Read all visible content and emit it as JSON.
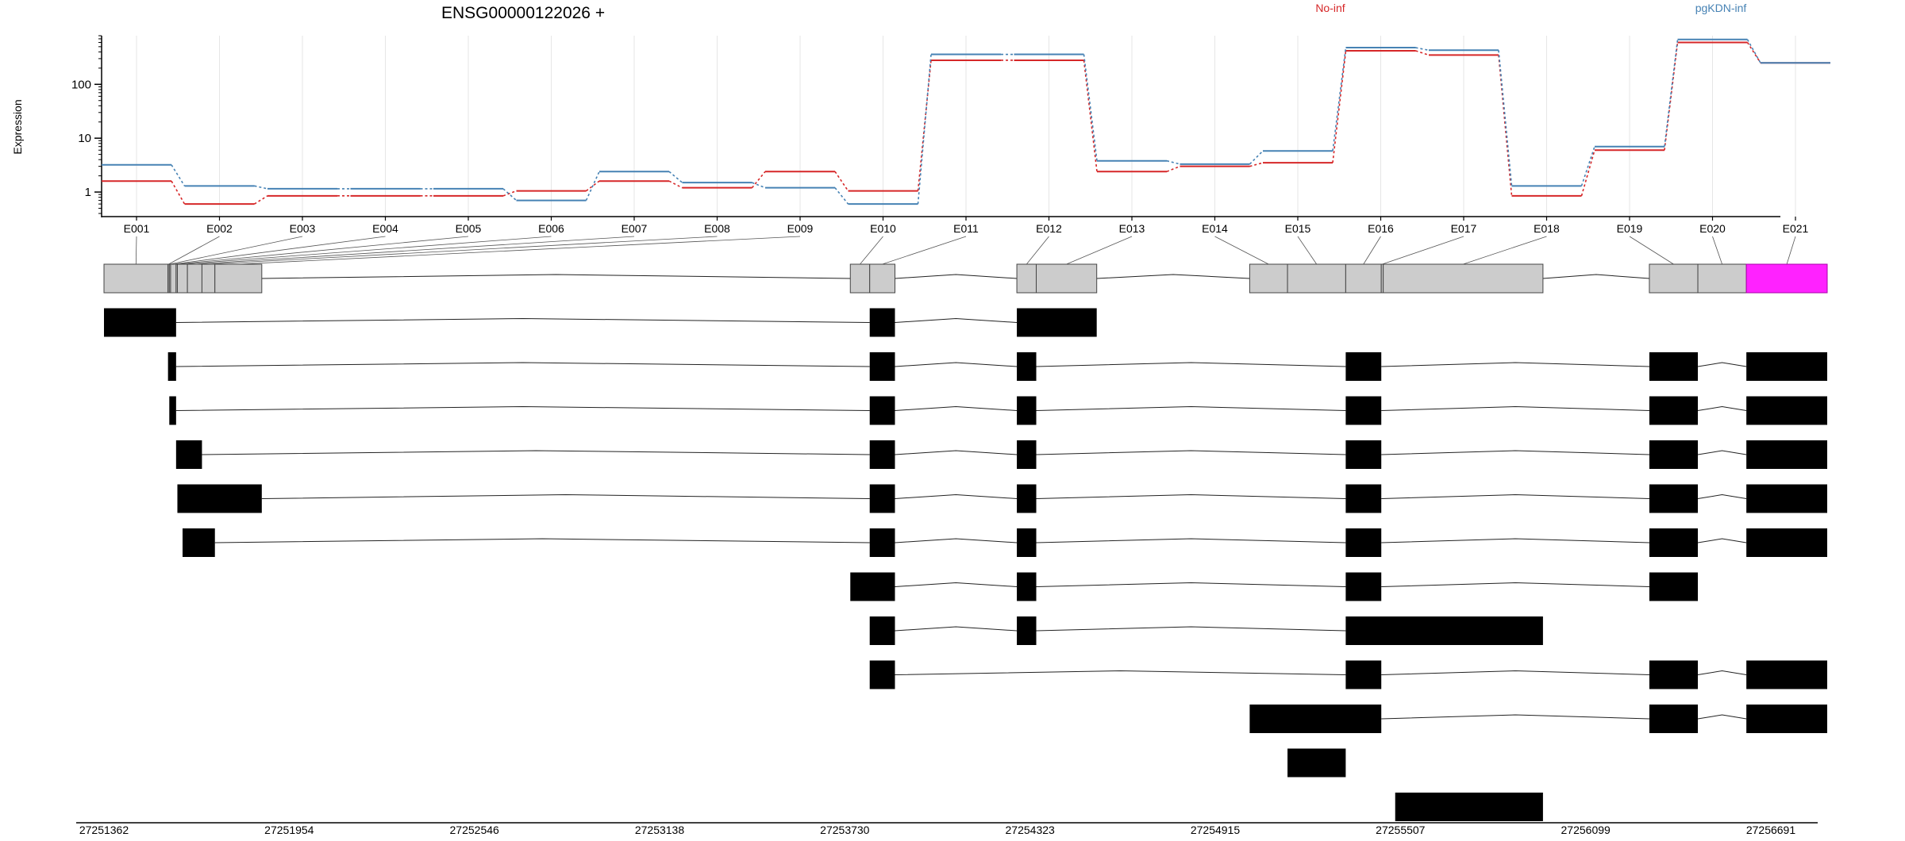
{
  "chart_data": {
    "type": "line",
    "title": "ENSG00000122026 +",
    "ylabel": "Expression",
    "xlabel": "",
    "yscale": "log",
    "ylim": [
      0.35,
      800
    ],
    "y_ticks": [
      "1",
      "10",
      "100"
    ],
    "grid": "vertical",
    "legend_placement": "top",
    "categories": [
      "E001",
      "E002",
      "E003",
      "E004",
      "E005",
      "E006",
      "E007",
      "E008",
      "E009",
      "E010",
      "E011",
      "E012",
      "E013",
      "E014",
      "E015",
      "E016",
      "E017",
      "E018",
      "E019",
      "E020",
      "E021"
    ],
    "series": [
      {
        "name": "No-inf",
        "color": "#d62728",
        "values": [
          1.6,
          0.6,
          0.85,
          0.85,
          0.85,
          1.05,
          1.6,
          1.2,
          2.4,
          1.05,
          280,
          280,
          2.4,
          3.0,
          3.5,
          420,
          350,
          0.85,
          6.0,
          600,
          250
        ]
      },
      {
        "name": "pgKDN-inf",
        "color": "#4682b4",
        "values": [
          3.2,
          1.3,
          1.15,
          1.15,
          1.15,
          0.7,
          2.4,
          1.5,
          1.2,
          0.6,
          360,
          360,
          3.8,
          3.3,
          5.8,
          480,
          430,
          1.3,
          7.0,
          680,
          250
        ]
      }
    ],
    "coordinate_ticks": [
      "27251362",
      "27251954",
      "27252546",
      "27253138",
      "27253730",
      "27254323",
      "27254915",
      "27255507",
      "27256099",
      "27256691"
    ],
    "genomic_range": [
      27251362,
      27256691
    ],
    "exon_bins": [
      {
        "id": "E001",
        "start": 27251362,
        "end": 27251560
      },
      {
        "id": "E002",
        "start": 27251560,
        "end": 27251564
      },
      {
        "id": "E003",
        "start": 27251564,
        "end": 27251568
      },
      {
        "id": "E004",
        "start": 27251568,
        "end": 27251585
      },
      {
        "id": "E005",
        "start": 27251585,
        "end": 27251589
      },
      {
        "id": "E006",
        "start": 27251589,
        "end": 27251620
      },
      {
        "id": "E007",
        "start": 27251620,
        "end": 27251665
      },
      {
        "id": "E008",
        "start": 27251665,
        "end": 27251705
      },
      {
        "id": "E009",
        "start": 27251705,
        "end": 27251850
      },
      {
        "id": "E010",
        "start": 27253670,
        "end": 27253730
      },
      {
        "id": "E011",
        "start": 27253730,
        "end": 27253808
      },
      {
        "id": "E012",
        "start": 27254185,
        "end": 27254245
      },
      {
        "id": "E013",
        "start": 27254245,
        "end": 27254432
      },
      {
        "id": "E014",
        "start": 27254905,
        "end": 27255022
      },
      {
        "id": "E015",
        "start": 27255022,
        "end": 27255202
      },
      {
        "id": "E016",
        "start": 27255202,
        "end": 27255312
      },
      {
        "id": "E017",
        "start": 27255312,
        "end": 27255318
      },
      {
        "id": "E018",
        "start": 27255318,
        "end": 27255812
      },
      {
        "id": "E019",
        "start": 27256141,
        "end": 27256291
      },
      {
        "id": "E020",
        "start": 27256291,
        "end": 27256441
      },
      {
        "id": "E021",
        "start": 27256441,
        "end": 27256691
      }
    ],
    "highlighted_bin": "E021",
    "highlight_color": "#ff22ff",
    "transcripts": [
      [
        [
          27251362,
          27251585
        ],
        [
          27253730,
          27253808
        ],
        [
          27254185,
          27254432
        ]
      ],
      [
        [
          27251560,
          27251585
        ],
        [
          27253730,
          27253808
        ],
        [
          27254185,
          27254245
        ],
        [
          27255202,
          27255312
        ],
        [
          27256141,
          27256291
        ],
        [
          27256441,
          27256691
        ]
      ],
      [
        [
          27251564,
          27251585
        ],
        [
          27253730,
          27253808
        ],
        [
          27254185,
          27254245
        ],
        [
          27255202,
          27255312
        ],
        [
          27256141,
          27256291
        ],
        [
          27256441,
          27256691
        ]
      ],
      [
        [
          27251585,
          27251665
        ],
        [
          27253730,
          27253808
        ],
        [
          27254185,
          27254245
        ],
        [
          27255202,
          27255312
        ],
        [
          27256141,
          27256291
        ],
        [
          27256441,
          27256691
        ]
      ],
      [
        [
          27251589,
          27251850
        ],
        [
          27253730,
          27253808
        ],
        [
          27254185,
          27254245
        ],
        [
          27255202,
          27255312
        ],
        [
          27256141,
          27256291
        ],
        [
          27256441,
          27256691
        ]
      ],
      [
        [
          27251605,
          27251705
        ],
        [
          27253730,
          27253808
        ],
        [
          27254185,
          27254245
        ],
        [
          27255202,
          27255312
        ],
        [
          27256141,
          27256291
        ],
        [
          27256441,
          27256691
        ]
      ],
      [
        [
          27253670,
          27253808
        ],
        [
          27254185,
          27254245
        ],
        [
          27255202,
          27255312
        ],
        [
          27256141,
          27256291
        ]
      ],
      [
        [
          27253730,
          27253808
        ],
        [
          27254185,
          27254245
        ],
        [
          27255202,
          27255812
        ]
      ],
      [
        [
          27253730,
          27253808
        ],
        [
          27255202,
          27255312
        ],
        [
          27256141,
          27256291
        ],
        [
          27256441,
          27256691
        ]
      ],
      [
        [
          27254905,
          27255312
        ],
        [
          27256141,
          27256291
        ],
        [
          27256441,
          27256691
        ]
      ],
      [
        [
          27255022,
          27255202
        ]
      ],
      [
        [
          27255355,
          27255812
        ]
      ]
    ]
  }
}
